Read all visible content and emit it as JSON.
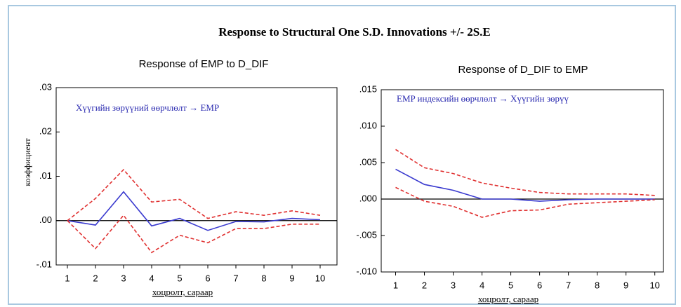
{
  "title": "Response to Structural One S.D. Innovations +/- 2S.E",
  "chart_data": [
    {
      "type": "line",
      "title": "Response of EMP to D_DIF",
      "annotation": "Хүүгийн зөрүүний өөрчлөлт → EMP",
      "xlabel": "хоцролт, сараар",
      "ylabel": "коэффициент",
      "x": [
        1,
        2,
        3,
        4,
        5,
        6,
        7,
        8,
        9,
        10
      ],
      "xlim": [
        0.6,
        10.6
      ],
      "xticks": [
        1,
        2,
        3,
        4,
        5,
        6,
        7,
        8,
        9,
        10
      ],
      "ylim": [
        -0.01,
        0.03
      ],
      "yticks": [
        {
          "value": -0.01,
          "label": "-.01"
        },
        {
          "value": 0,
          "label": ".00"
        },
        {
          "value": 0.01,
          "label": ".01"
        },
        {
          "value": 0.02,
          "label": ".02"
        },
        {
          "value": 0.03,
          "label": ".03"
        }
      ],
      "zero_line": true,
      "series": [
        {
          "color": "#3a3acf",
          "line_style": "solid",
          "values": [
            0,
            -0.001,
            0.0065,
            -0.0012,
            0.0005,
            -0.0022,
            -0.0002,
            -0.0003,
            0.0005,
            0.0002
          ]
        },
        {
          "color": "#e03030",
          "line_style": "dashed",
          "values": [
            0,
            0.005,
            0.0115,
            0.0042,
            0.0048,
            0.0005,
            0.002,
            0.0012,
            0.0022,
            0.0012
          ]
        },
        {
          "color": "#e03030",
          "line_style": "dashed",
          "values": [
            0,
            -0.0063,
            0.0012,
            -0.0072,
            -0.0033,
            -0.005,
            -0.0018,
            -0.0018,
            -0.0008,
            -0.0008
          ]
        }
      ]
    },
    {
      "type": "line",
      "title": "Response of D_DIF to EMP",
      "annotation": "EMP индексийн өөрчлөлт → Хүүгийн зөрүү",
      "xlabel": "хоцролт, сараар",
      "x": [
        1,
        2,
        3,
        4,
        5,
        6,
        7,
        8,
        9,
        10
      ],
      "xlim": [
        0.5,
        10.3
      ],
      "xticks": [
        1,
        2,
        3,
        4,
        5,
        6,
        7,
        8,
        9,
        10
      ],
      "ylim": [
        -0.01,
        0.015
      ],
      "yticks": [
        {
          "value": -0.01,
          "label": "-.010"
        },
        {
          "value": -0.005,
          "label": "-.005"
        },
        {
          "value": 0,
          "label": ".000"
        },
        {
          "value": 0.005,
          "label": ".005"
        },
        {
          "value": 0.01,
          "label": ".010"
        },
        {
          "value": 0.015,
          "label": ".015"
        }
      ],
      "zero_line": true,
      "series": [
        {
          "color": "#3a3acf",
          "line_style": "solid",
          "values": [
            0.0041,
            0.002,
            0.0012,
            0,
            0,
            -0.0003,
            -0.0001,
            0,
            0,
            0
          ]
        },
        {
          "color": "#e03030",
          "line_style": "dashed",
          "values": [
            0.0068,
            0.0043,
            0.0035,
            0.0022,
            0.0015,
            0.0009,
            0.0007,
            0.0007,
            0.0007,
            0.0005
          ]
        },
        {
          "color": "#e03030",
          "line_style": "dashed",
          "values": [
            0.0016,
            -0.0003,
            -0.001,
            -0.0025,
            -0.0016,
            -0.0015,
            -0.0007,
            -0.0005,
            -0.0003,
            -0.0001
          ]
        }
      ]
    }
  ]
}
